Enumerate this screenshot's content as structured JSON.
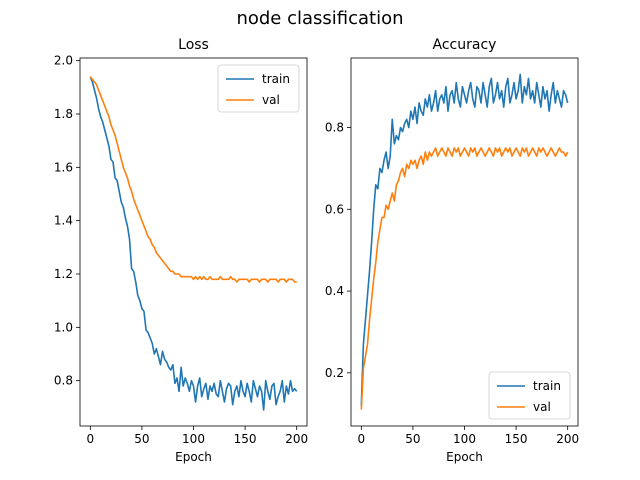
{
  "title": "node classification",
  "chart_data": [
    {
      "type": "line",
      "title": "Loss",
      "xlabel": "Epoch",
      "ylabel": "",
      "xlim": [
        -10,
        210
      ],
      "ylim": [
        0.63,
        2.01
      ],
      "xticks": [
        0,
        50,
        100,
        150,
        200
      ],
      "yticks": [
        0.8,
        1.0,
        1.2,
        1.4,
        1.6,
        1.8,
        2.0
      ],
      "yticks_labels": [
        "0.8",
        "1.0",
        "1.2",
        "1.4",
        "1.6",
        "1.8",
        "2.0"
      ],
      "legend": {
        "placement": "top-right",
        "entries": [
          "train",
          "val"
        ]
      },
      "grid": false,
      "series": [
        {
          "name": "train",
          "color": "#1f77b4",
          "x": [
            0,
            2,
            4,
            6,
            8,
            10,
            12,
            14,
            16,
            18,
            20,
            22,
            24,
            26,
            28,
            30,
            32,
            34,
            36,
            38,
            40,
            42,
            44,
            46,
            48,
            50,
            52,
            54,
            56,
            58,
            60,
            62,
            64,
            66,
            68,
            70,
            72,
            74,
            76,
            78,
            80,
            82,
            84,
            86,
            88,
            90,
            92,
            94,
            96,
            98,
            100,
            102,
            104,
            106,
            108,
            110,
            112,
            114,
            116,
            118,
            120,
            122,
            124,
            126,
            128,
            130,
            132,
            134,
            136,
            138,
            140,
            142,
            144,
            146,
            148,
            150,
            152,
            154,
            156,
            158,
            160,
            162,
            164,
            166,
            168,
            170,
            172,
            174,
            176,
            178,
            180,
            182,
            184,
            186,
            188,
            190,
            192,
            194,
            196,
            198,
            200
          ],
          "y": [
            1.94,
            1.92,
            1.89,
            1.86,
            1.82,
            1.79,
            1.77,
            1.74,
            1.71,
            1.68,
            1.63,
            1.62,
            1.56,
            1.55,
            1.51,
            1.47,
            1.45,
            1.41,
            1.38,
            1.33,
            1.22,
            1.21,
            1.17,
            1.12,
            1.1,
            1.07,
            1.06,
            0.99,
            0.98,
            0.96,
            0.94,
            0.9,
            0.92,
            0.89,
            0.86,
            0.91,
            0.88,
            0.87,
            0.85,
            0.84,
            0.86,
            0.79,
            0.81,
            0.76,
            0.85,
            0.78,
            0.81,
            0.79,
            0.76,
            0.8,
            0.78,
            0.72,
            0.78,
            0.81,
            0.74,
            0.77,
            0.79,
            0.73,
            0.78,
            0.76,
            0.79,
            0.75,
            0.74,
            0.8,
            0.76,
            0.72,
            0.77,
            0.79,
            0.78,
            0.71,
            0.76,
            0.78,
            0.74,
            0.8,
            0.76,
            0.74,
            0.79,
            0.76,
            0.72,
            0.8,
            0.77,
            0.74,
            0.78,
            0.76,
            0.69,
            0.8,
            0.76,
            0.73,
            0.78,
            0.79,
            0.71,
            0.74,
            0.76,
            0.8,
            0.72,
            0.78,
            0.75,
            0.8,
            0.76,
            0.77,
            0.76
          ]
        },
        {
          "name": "val",
          "color": "#ff7f0e",
          "x": [
            0,
            2,
            4,
            6,
            8,
            10,
            12,
            14,
            16,
            18,
            20,
            22,
            24,
            26,
            28,
            30,
            32,
            34,
            36,
            38,
            40,
            42,
            44,
            46,
            48,
            50,
            52,
            54,
            56,
            58,
            60,
            62,
            64,
            66,
            68,
            70,
            72,
            74,
            76,
            78,
            80,
            82,
            84,
            86,
            88,
            90,
            92,
            94,
            96,
            98,
            100,
            102,
            104,
            106,
            108,
            110,
            112,
            114,
            116,
            118,
            120,
            122,
            124,
            126,
            128,
            130,
            132,
            134,
            136,
            138,
            140,
            142,
            144,
            146,
            148,
            150,
            152,
            154,
            156,
            158,
            160,
            162,
            164,
            166,
            168,
            170,
            172,
            174,
            176,
            178,
            180,
            182,
            184,
            186,
            188,
            190,
            192,
            194,
            196,
            198,
            200
          ],
          "y": [
            1.94,
            1.93,
            1.92,
            1.91,
            1.89,
            1.87,
            1.85,
            1.83,
            1.81,
            1.79,
            1.76,
            1.74,
            1.72,
            1.69,
            1.66,
            1.63,
            1.6,
            1.58,
            1.56,
            1.53,
            1.51,
            1.48,
            1.46,
            1.44,
            1.42,
            1.4,
            1.38,
            1.36,
            1.34,
            1.33,
            1.31,
            1.3,
            1.28,
            1.27,
            1.26,
            1.25,
            1.24,
            1.23,
            1.22,
            1.21,
            1.21,
            1.2,
            1.2,
            1.2,
            1.19,
            1.19,
            1.19,
            1.19,
            1.19,
            1.19,
            1.18,
            1.19,
            1.18,
            1.19,
            1.18,
            1.19,
            1.18,
            1.18,
            1.19,
            1.18,
            1.18,
            1.18,
            1.18,
            1.19,
            1.18,
            1.18,
            1.18,
            1.18,
            1.19,
            1.18,
            1.18,
            1.17,
            1.18,
            1.18,
            1.18,
            1.18,
            1.18,
            1.17,
            1.18,
            1.18,
            1.18,
            1.18,
            1.17,
            1.18,
            1.18,
            1.18,
            1.17,
            1.18,
            1.18,
            1.18,
            1.18,
            1.17,
            1.18,
            1.18,
            1.18,
            1.17,
            1.18,
            1.18,
            1.18,
            1.17,
            1.17
          ]
        }
      ]
    },
    {
      "type": "line",
      "title": "Accuracy",
      "xlabel": "Epoch",
      "ylabel": "",
      "xlim": [
        -10,
        210
      ],
      "ylim": [
        0.07,
        0.97
      ],
      "xticks": [
        0,
        50,
        100,
        150,
        200
      ],
      "yticks": [
        0.2,
        0.4,
        0.6,
        0.8
      ],
      "yticks_labels": [
        "0.2",
        "0.4",
        "0.6",
        "0.8"
      ],
      "legend": {
        "placement": "bottom-right",
        "entries": [
          "train",
          "val"
        ]
      },
      "grid": false,
      "series": [
        {
          "name": "train",
          "color": "#1f77b4",
          "x": [
            0,
            2,
            4,
            6,
            8,
            10,
            12,
            14,
            16,
            18,
            20,
            22,
            24,
            26,
            28,
            30,
            32,
            34,
            36,
            38,
            40,
            42,
            44,
            46,
            48,
            50,
            52,
            54,
            56,
            58,
            60,
            62,
            64,
            66,
            68,
            70,
            72,
            74,
            76,
            78,
            80,
            82,
            84,
            86,
            88,
            90,
            92,
            94,
            96,
            98,
            100,
            102,
            104,
            106,
            108,
            110,
            112,
            114,
            116,
            118,
            120,
            122,
            124,
            126,
            128,
            130,
            132,
            134,
            136,
            138,
            140,
            142,
            144,
            146,
            148,
            150,
            152,
            154,
            156,
            158,
            160,
            162,
            164,
            166,
            168,
            170,
            172,
            174,
            176,
            178,
            180,
            182,
            184,
            186,
            188,
            190,
            192,
            194,
            196,
            198,
            200
          ],
          "y": [
            0.12,
            0.27,
            0.33,
            0.39,
            0.45,
            0.52,
            0.6,
            0.66,
            0.65,
            0.7,
            0.69,
            0.72,
            0.74,
            0.7,
            0.73,
            0.82,
            0.76,
            0.78,
            0.77,
            0.8,
            0.79,
            0.81,
            0.82,
            0.8,
            0.84,
            0.82,
            0.85,
            0.81,
            0.86,
            0.84,
            0.83,
            0.87,
            0.85,
            0.88,
            0.84,
            0.86,
            0.89,
            0.84,
            0.87,
            0.88,
            0.86,
            0.9,
            0.84,
            0.88,
            0.89,
            0.86,
            0.91,
            0.87,
            0.85,
            0.9,
            0.88,
            0.86,
            0.89,
            0.91,
            0.87,
            0.85,
            0.9,
            0.89,
            0.86,
            0.91,
            0.88,
            0.85,
            0.9,
            0.92,
            0.86,
            0.88,
            0.91,
            0.87,
            0.89,
            0.85,
            0.9,
            0.92,
            0.86,
            0.88,
            0.91,
            0.87,
            0.89,
            0.93,
            0.86,
            0.9,
            0.88,
            0.92,
            0.87,
            0.89,
            0.86,
            0.91,
            0.88,
            0.85,
            0.9,
            0.87,
            0.89,
            0.84,
            0.88,
            0.91,
            0.86,
            0.89,
            0.87,
            0.85,
            0.89,
            0.88,
            0.86
          ]
        },
        {
          "name": "val",
          "color": "#ff7f0e",
          "x": [
            0,
            2,
            4,
            6,
            8,
            10,
            12,
            14,
            16,
            18,
            20,
            22,
            24,
            26,
            28,
            30,
            32,
            34,
            36,
            38,
            40,
            42,
            44,
            46,
            48,
            50,
            52,
            54,
            56,
            58,
            60,
            62,
            64,
            66,
            68,
            70,
            72,
            74,
            76,
            78,
            80,
            82,
            84,
            86,
            88,
            90,
            92,
            94,
            96,
            98,
            100,
            102,
            104,
            106,
            108,
            110,
            112,
            114,
            116,
            118,
            120,
            122,
            124,
            126,
            128,
            130,
            132,
            134,
            136,
            138,
            140,
            142,
            144,
            146,
            148,
            150,
            152,
            154,
            156,
            158,
            160,
            162,
            164,
            166,
            168,
            170,
            172,
            174,
            176,
            178,
            180,
            182,
            184,
            186,
            188,
            190,
            192,
            194,
            196,
            198,
            200
          ],
          "y": [
            0.11,
            0.21,
            0.24,
            0.27,
            0.33,
            0.38,
            0.43,
            0.47,
            0.52,
            0.55,
            0.58,
            0.58,
            0.61,
            0.6,
            0.62,
            0.64,
            0.62,
            0.66,
            0.67,
            0.69,
            0.7,
            0.68,
            0.71,
            0.7,
            0.72,
            0.71,
            0.72,
            0.7,
            0.72,
            0.73,
            0.71,
            0.74,
            0.72,
            0.74,
            0.73,
            0.74,
            0.75,
            0.73,
            0.74,
            0.75,
            0.74,
            0.73,
            0.75,
            0.74,
            0.73,
            0.75,
            0.74,
            0.75,
            0.73,
            0.74,
            0.75,
            0.74,
            0.73,
            0.75,
            0.74,
            0.75,
            0.73,
            0.74,
            0.75,
            0.74,
            0.73,
            0.74,
            0.75,
            0.74,
            0.73,
            0.75,
            0.74,
            0.75,
            0.73,
            0.74,
            0.75,
            0.74,
            0.75,
            0.73,
            0.74,
            0.75,
            0.74,
            0.73,
            0.75,
            0.74,
            0.75,
            0.73,
            0.74,
            0.75,
            0.74,
            0.73,
            0.75,
            0.74,
            0.75,
            0.74,
            0.73,
            0.74,
            0.75,
            0.74,
            0.73,
            0.74,
            0.75,
            0.74,
            0.74,
            0.73,
            0.74
          ]
        }
      ]
    }
  ]
}
